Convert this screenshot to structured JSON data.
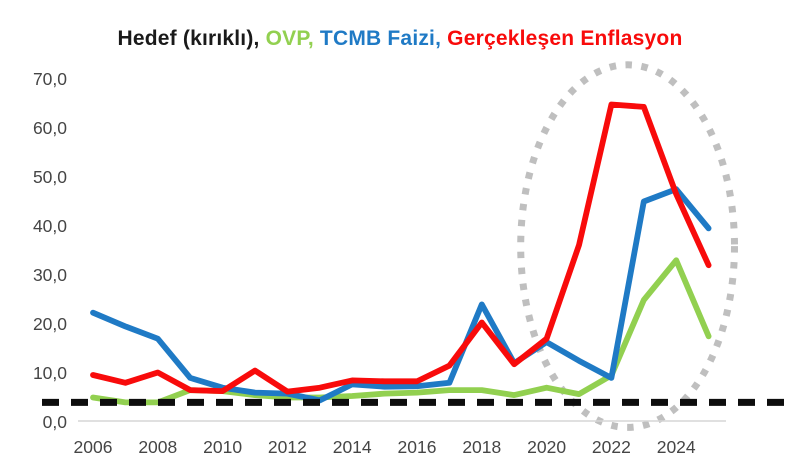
{
  "title": {
    "text": "Hedef (kırıklı), OVP, TCMB Faizi, Gerçekleşen Enflasyon",
    "segments": [
      {
        "text": "Hedef (kırıklı), ",
        "color": "#1a1a1a"
      },
      {
        "text": "OVP, ",
        "color": "#92d050"
      },
      {
        "text": "TCMB Faizi, ",
        "color": "#1f7ac5"
      },
      {
        "text": "Gerçekleşen Enflasyon",
        "color": "#f80b0b"
      }
    ]
  },
  "chart_data": {
    "type": "line",
    "x_years": [
      2006,
      2007,
      2008,
      2009,
      2010,
      2011,
      2012,
      2013,
      2014,
      2015,
      2016,
      2017,
      2018,
      2019,
      2020,
      2021,
      2022,
      2023,
      2024,
      2025
    ],
    "series": [
      {
        "id": "ovp",
        "name": "OVP",
        "color": "#92d050",
        "values": [
          5.0,
          4.0,
          4.0,
          6.5,
          6.3,
          5.5,
          5.0,
          5.0,
          5.3,
          5.8,
          6.0,
          6.5,
          6.5,
          5.5,
          7.0,
          5.7,
          9.5,
          24.9,
          33.0,
          17.5
        ]
      },
      {
        "id": "tcmb-faizi",
        "name": "TCMB Faizi",
        "color": "#1f7ac5",
        "values": [
          22.3,
          19.5,
          17.0,
          9.0,
          7.0,
          6.0,
          5.8,
          4.4,
          7.7,
          7.2,
          7.3,
          8.0,
          24.0,
          12.0,
          16.3,
          12.5,
          9.0,
          45.0,
          47.5,
          39.5
        ]
      },
      {
        "id": "gerceklesen-enflasyon",
        "name": "Gerçekleşen Enflasyon",
        "color": "#f80b0b",
        "values": [
          9.6,
          8.0,
          10.1,
          6.5,
          6.3,
          10.5,
          6.2,
          7.0,
          8.5,
          8.3,
          8.3,
          11.5,
          20.3,
          11.8,
          17.0,
          36.1,
          64.8,
          64.3,
          46.5,
          32.0
        ]
      }
    ],
    "target_line": {
      "id": "hedef",
      "name": "Hedef (kırıklı)",
      "value": 4.0,
      "style": "dashed",
      "color": "#0d0d0d"
    },
    "y_axis": {
      "min": 0,
      "max": 70,
      "step": 10,
      "tick_labels": [
        "0,0",
        "10,0",
        "20,0",
        "30,0",
        "40,0",
        "50,0",
        "60,0",
        "70,0"
      ]
    },
    "x_axis": {
      "tick_years": [
        2006,
        2008,
        2010,
        2012,
        2014,
        2016,
        2018,
        2020,
        2022,
        2024
      ],
      "tick_labels": [
        "2006",
        "2008",
        "2010",
        "2012",
        "2014",
        "2016",
        "2018",
        "2020",
        "2022",
        "2024"
      ]
    },
    "annotation_ellipse": {
      "center_year": 2022.5,
      "center_value": 35.9,
      "radius_years": 3.3,
      "radius_units": 37.0,
      "color": "#bfbfbf"
    },
    "grid": "off",
    "legend": "in-title-colored-text",
    "ylim": [
      0,
      70
    ]
  }
}
